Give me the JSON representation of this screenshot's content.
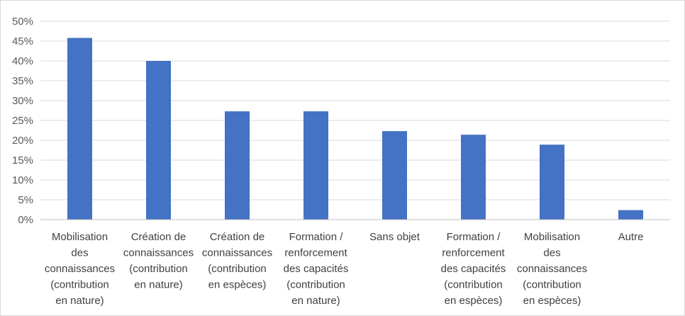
{
  "chart_data": {
    "type": "bar",
    "title": "",
    "xlabel": "",
    "ylabel": "",
    "ylim": [
      0,
      0.5
    ],
    "y_ticks": [
      "0%",
      "5%",
      "10%",
      "15%",
      "20%",
      "25%",
      "30%",
      "35%",
      "40%",
      "45%",
      "50%"
    ],
    "grid": true,
    "legend": "none",
    "bar_color": "#4472C4",
    "categories": [
      [
        "Mobilisation",
        "des",
        "connaissances",
        "(contribution",
        "en nature)"
      ],
      [
        "Création de",
        "connaissances",
        "(contribution",
        "en nature)"
      ],
      [
        "Création de",
        "connaissances",
        "(contribution",
        "en espèces)"
      ],
      [
        "Formation /",
        "renforcement",
        "des capacités",
        "(contribution",
        "en nature)"
      ],
      [
        "Sans objet"
      ],
      [
        "Formation /",
        "renforcement",
        "des capacités",
        "(contribution",
        "en espèces)"
      ],
      [
        "Mobilisation",
        "des",
        "connaissances",
        "(contribution",
        "en espèces)"
      ],
      [
        "Autre"
      ]
    ],
    "values": [
      0.458,
      0.4,
      0.273,
      0.273,
      0.223,
      0.214,
      0.189,
      0.024
    ]
  }
}
